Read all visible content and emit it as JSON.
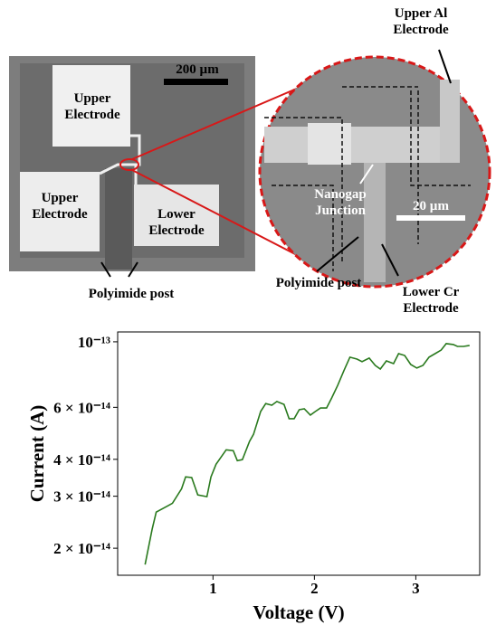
{
  "figure": {
    "scale_bar_left": "200 µm",
    "upper_electrode_top": "Upper Electrode",
    "upper_electrode_left": "Upper Electrode",
    "lower_electrode": "Lower Electrode",
    "polyimide_post_left": "Polyimide post",
    "upper_al_electrode": "Upper Al Electrode",
    "nanogap_junction": "Nanogap Junction",
    "scale_bar_zoom": "20 µm",
    "polyimide_post_zoom": "Polyimide post",
    "lower_cr_electrode": "Lower Cr Electrode"
  },
  "chart_data": {
    "type": "line",
    "x_label": "Voltage (V)",
    "y_label": "Current (A)",
    "x": [
      0.33,
      0.4,
      0.44,
      0.56,
      0.6,
      0.69,
      0.73,
      0.79,
      0.85,
      0.94,
      0.98,
      1.03,
      1.13,
      1.2,
      1.24,
      1.29,
      1.36,
      1.4,
      1.47,
      1.52,
      1.58,
      1.63,
      1.7,
      1.75,
      1.8,
      1.85,
      1.9,
      1.96,
      2.01,
      2.06,
      2.12,
      2.17,
      2.23,
      2.29,
      2.35,
      2.42,
      2.47,
      2.54,
      2.6,
      2.65,
      2.71,
      2.78,
      2.83,
      2.89,
      2.95,
      3.01,
      3.07,
      3.13,
      3.19,
      3.25,
      3.3,
      3.37,
      3.41,
      3.47,
      3.53
    ],
    "values": [
      1.76e-14,
      2.32e-14,
      2.65e-14,
      2.79e-14,
      2.84e-14,
      3.18e-14,
      3.49e-14,
      3.47e-14,
      3.03e-14,
      2.99e-14,
      3.49e-14,
      3.85e-14,
      4.31e-14,
      4.28e-14,
      3.96e-14,
      3.99e-14,
      4.6e-14,
      4.86e-14,
      5.81e-14,
      6.18e-14,
      6.1e-14,
      6.28e-14,
      6.14e-14,
      5.49e-14,
      5.49e-14,
      5.89e-14,
      5.93e-14,
      5.65e-14,
      5.81e-14,
      5.97e-14,
      5.97e-14,
      6.45e-14,
      7.12e-14,
      7.98e-14,
      8.87e-14,
      8.74e-14,
      8.57e-14,
      8.81e-14,
      8.32e-14,
      8.09e-14,
      8.62e-14,
      8.44e-14,
      9.12e-14,
      8.99e-14,
      8.38e-14,
      8.15e-14,
      8.32e-14,
      8.87e-14,
      9.12e-14,
      9.38e-14,
      9.86e-14,
      9.79e-14,
      9.65e-14,
      9.65e-14,
      9.72e-14
    ],
    "color": "#2a7a1e",
    "xlim": [
      0.06,
      3.63
    ],
    "xticks": [
      1,
      2,
      3
    ],
    "ylim": [
      1.62e-14,
      1.08e-13
    ],
    "log_y": true,
    "yticks": [
      {
        "value": 2e-14,
        "label": "2 × 10⁻¹⁴"
      },
      {
        "value": 3e-14,
        "label": "3 × 10⁻¹⁴"
      },
      {
        "value": 4e-14,
        "label": "4 × 10⁻¹⁴"
      },
      {
        "value": 6e-14,
        "label": "6 × 10⁻¹⁴"
      },
      {
        "value": 1e-13,
        "label": "10⁻¹³"
      }
    ]
  }
}
